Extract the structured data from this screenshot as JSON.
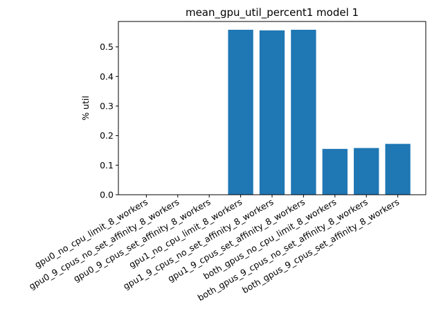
{
  "chart_data": {
    "type": "bar",
    "title": "mean_gpu_util_percent1 model 1",
    "xlabel": "",
    "ylabel": "% util",
    "categories": [
      "gpu0_no_cpu_limit_8_workers",
      "gpu0_9_cpus_no_set_affinity_8_workers",
      "gpu0_9_cpus_set_affinity_8_workers",
      "gpu1_no_cpu_limit_8_workers",
      "gpu1_9_cpus_no_set_affinity_8_workers",
      "gpu1_9_cpus_set_affinity_8_workers",
      "both_gpus_no_cpu_limit_8_workers",
      "both_gpus_9_cpus_no_set_affinity_8_workers",
      "both_gpus_9_cpus_set_affinity_8_workers"
    ],
    "values": [
      0,
      0,
      0,
      0.558,
      0.556,
      0.558,
      0.155,
      0.158,
      0.172
    ],
    "ylim": [
      0,
      0.586
    ],
    "yticks": [
      "0.0",
      "0.1",
      "0.2",
      "0.3",
      "0.4",
      "0.5"
    ],
    "bar_color": "#1f77b4",
    "grid": false
  }
}
